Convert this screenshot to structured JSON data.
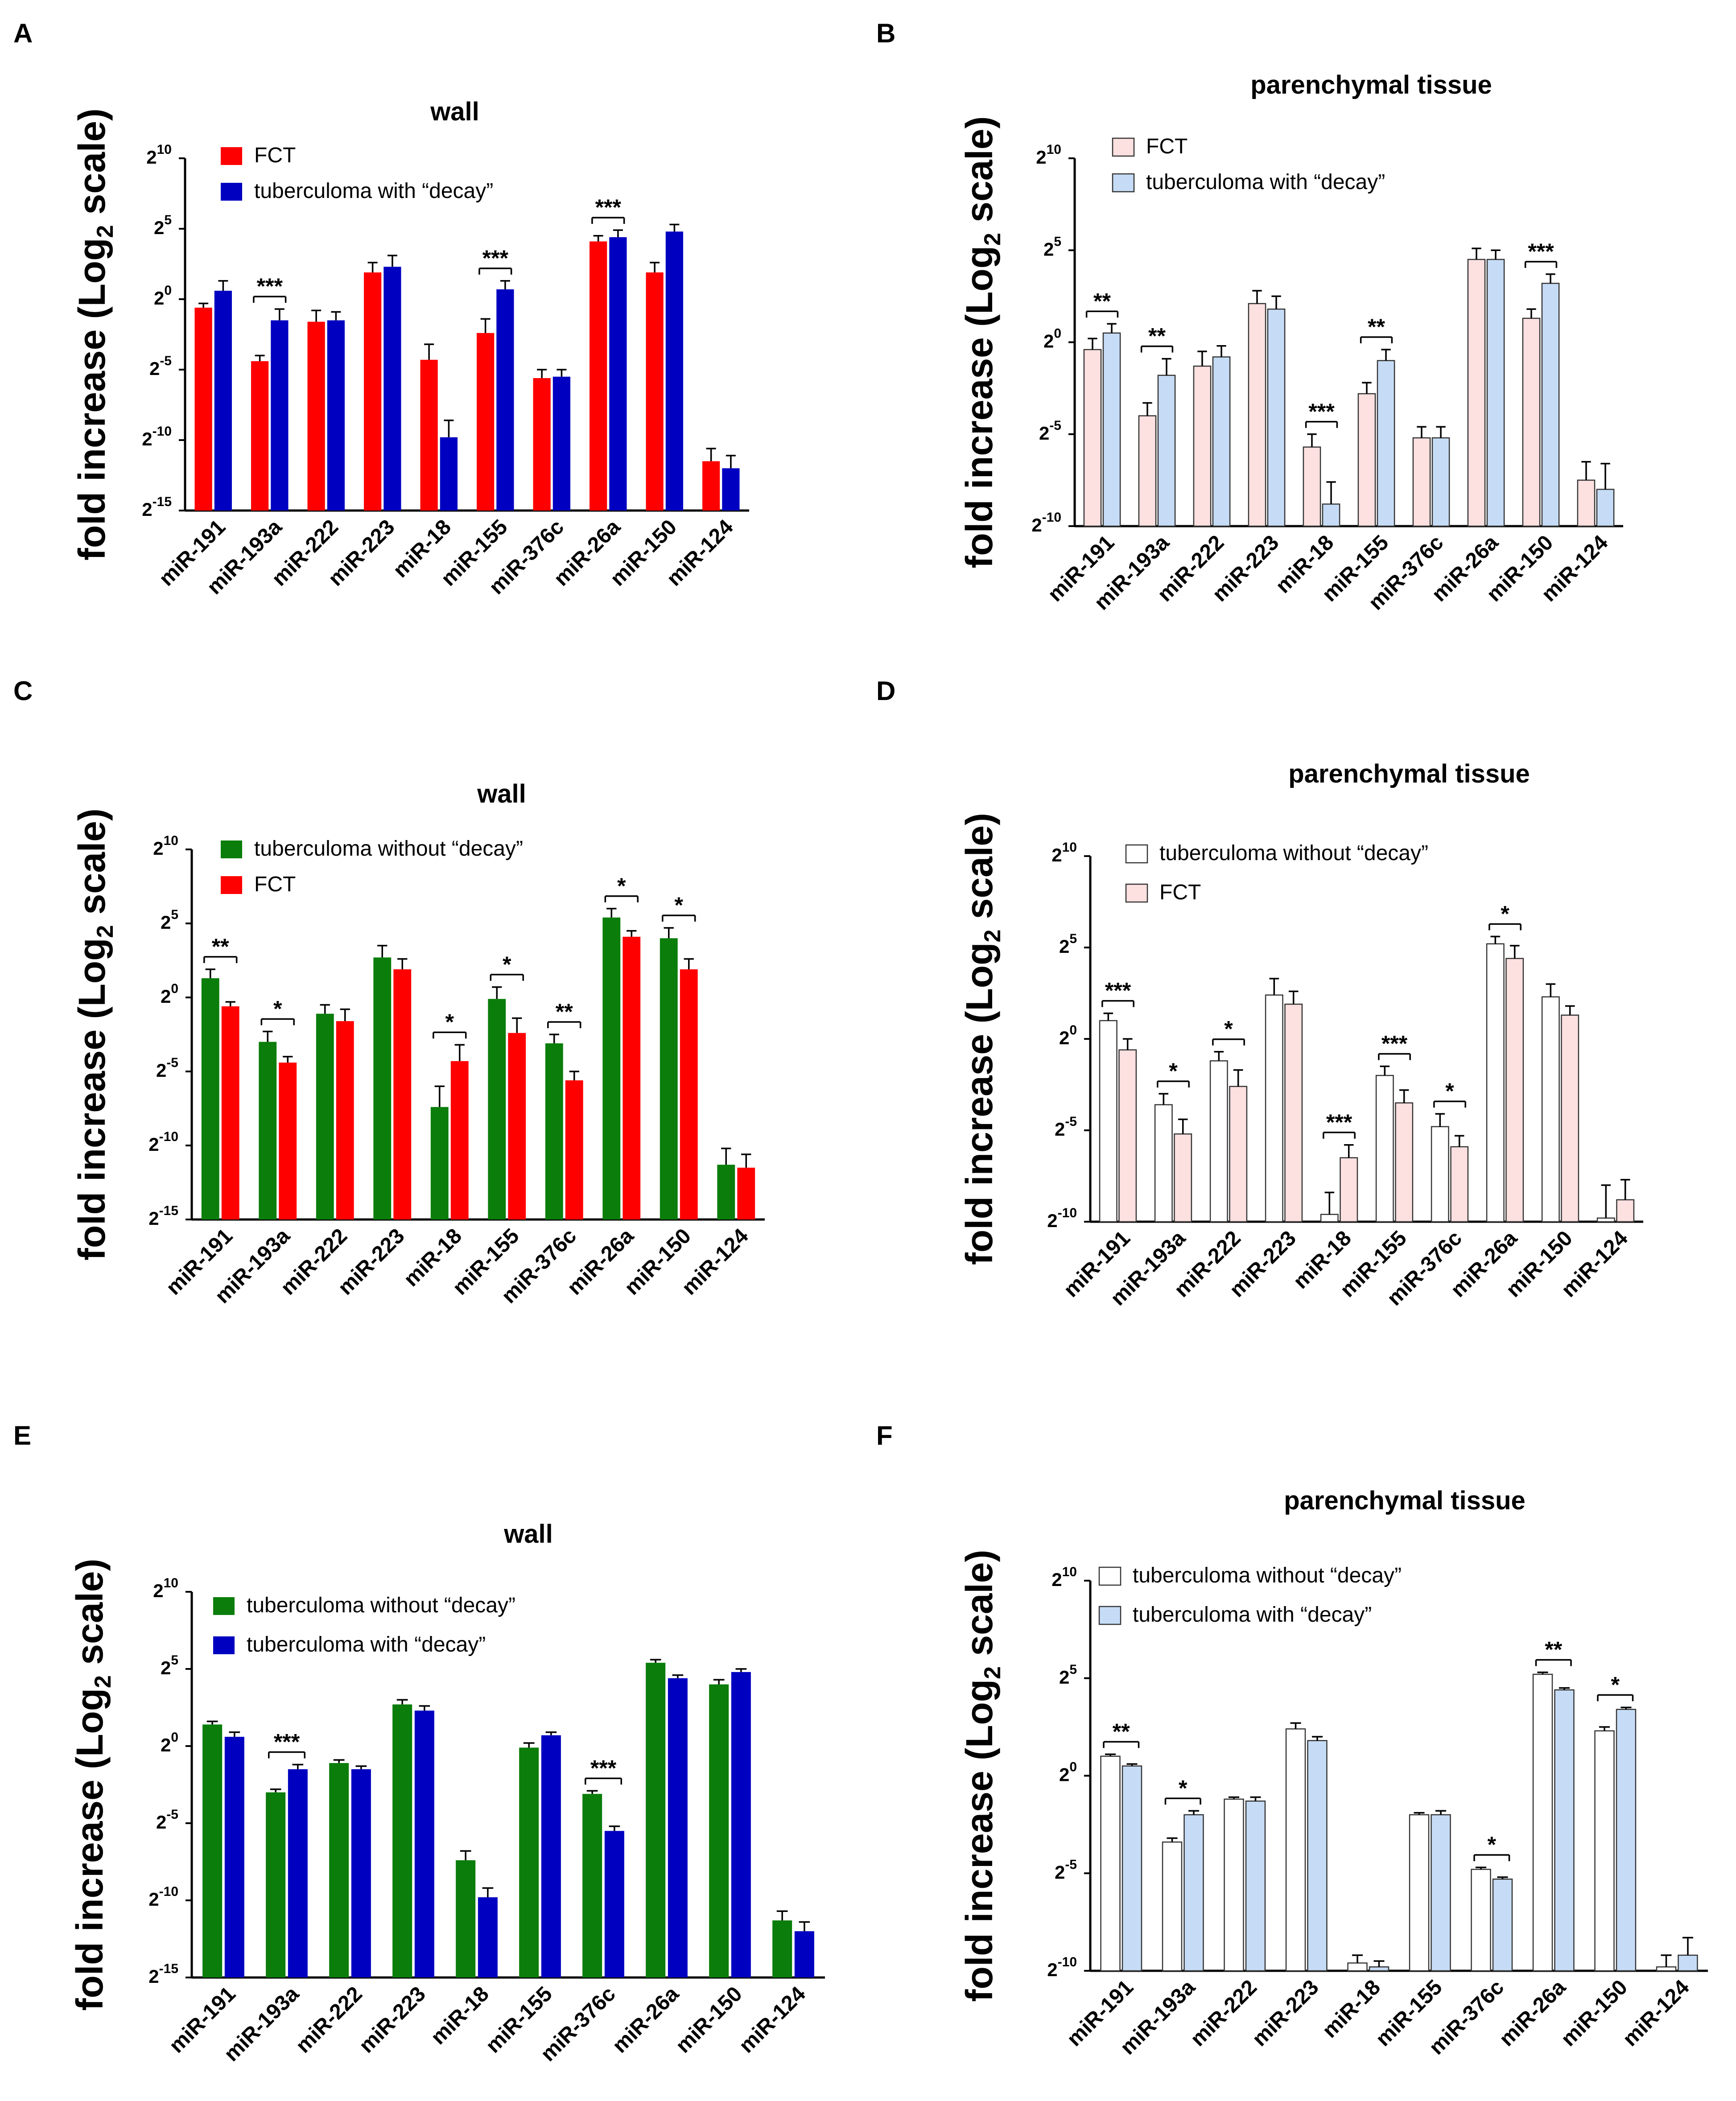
{
  "colors": {
    "red": "#ff0000",
    "blue": "#0000c0",
    "green": "#0a7d0a",
    "pink": "#fde0e0",
    "lightblue": "#c6dcf6",
    "white": "#ffffff",
    "outline": "#000000"
  },
  "chart_data": [
    {
      "panel": "A",
      "type": "bar",
      "title": "wall",
      "ylabel": "fold increase (Log2 scale)",
      "ylim": [
        -15,
        10
      ],
      "yticks": [
        -15,
        -10,
        -5,
        0,
        5,
        10
      ],
      "categories": [
        "miR-191",
        "miR-193a",
        "miR-222",
        "miR-223",
        "miR-18",
        "miR-155",
        "miR-376c",
        "miR-26a",
        "miR-150",
        "miR-124"
      ],
      "series": [
        {
          "name": "FCT",
          "color": "red",
          "values": [
            -0.6,
            -4.4,
            -1.6,
            1.9,
            -4.3,
            -2.4,
            -5.6,
            4.1,
            1.9,
            -11.5
          ],
          "errors": [
            0.3,
            0.4,
            0.8,
            0.7,
            1.1,
            1.0,
            0.6,
            0.4,
            0.7,
            0.9
          ]
        },
        {
          "name": "tuberculoma with “decay”",
          "color": "blue",
          "values": [
            0.6,
            -1.5,
            -1.5,
            2.3,
            -9.8,
            0.7,
            -5.5,
            4.4,
            4.8,
            -12.0
          ],
          "errors": [
            0.7,
            0.8,
            0.6,
            0.8,
            1.2,
            0.6,
            0.5,
            0.5,
            0.5,
            0.9
          ]
        }
      ],
      "significance": [
        {
          "index": 1,
          "label": "***"
        },
        {
          "index": 5,
          "label": "***"
        },
        {
          "index": 7,
          "label": "***"
        }
      ]
    },
    {
      "panel": "B",
      "type": "bar",
      "title": "parenchymal tissue",
      "ylabel": "fold increase (Log2 scale)",
      "ylim": [
        -10,
        10
      ],
      "yticks": [
        -10,
        -5,
        0,
        5,
        10
      ],
      "categories": [
        "miR-191",
        "miR-193a",
        "miR-222",
        "miR-223",
        "miR-18",
        "miR-155",
        "miR-376c",
        "miR-26a",
        "miR-150",
        "miR-124"
      ],
      "series": [
        {
          "name": "FCT",
          "color": "pink",
          "values": [
            -0.4,
            -4.0,
            -1.3,
            2.1,
            -5.7,
            -2.8,
            -5.2,
            4.5,
            1.3,
            -7.5
          ],
          "errors": [
            0.6,
            0.7,
            0.8,
            0.7,
            0.7,
            0.6,
            0.6,
            0.6,
            0.5,
            1.0
          ]
        },
        {
          "name": "tuberculoma with “decay”",
          "color": "lightblue",
          "values": [
            0.5,
            -1.8,
            -0.8,
            1.8,
            -8.8,
            -1.0,
            -5.2,
            4.5,
            3.2,
            -8.0
          ],
          "errors": [
            0.5,
            0.9,
            0.6,
            0.7,
            1.2,
            0.6,
            0.6,
            0.5,
            0.5,
            1.4
          ]
        }
      ],
      "significance": [
        {
          "index": 0,
          "label": "**"
        },
        {
          "index": 1,
          "label": "**"
        },
        {
          "index": 4,
          "label": "***"
        },
        {
          "index": 5,
          "label": "**"
        },
        {
          "index": 8,
          "label": "***"
        }
      ]
    },
    {
      "panel": "C",
      "type": "bar",
      "title": "wall",
      "ylabel": "fold increase (Log2 scale)",
      "ylim": [
        -15,
        10
      ],
      "yticks": [
        -15,
        -10,
        -5,
        0,
        5,
        10
      ],
      "categories": [
        "miR-191",
        "miR-193a",
        "miR-222",
        "miR-223",
        "miR-18",
        "miR-155",
        "miR-376c",
        "miR-26a",
        "miR-150",
        "miR-124"
      ],
      "series": [
        {
          "name": "tuberculoma without “decay”",
          "color": "green",
          "values": [
            1.3,
            -3.0,
            -1.1,
            2.7,
            -7.4,
            -0.1,
            -3.1,
            5.4,
            4.0,
            -11.3
          ],
          "errors": [
            0.6,
            0.7,
            0.6,
            0.8,
            1.4,
            0.8,
            0.6,
            0.6,
            0.7,
            1.1
          ]
        },
        {
          "name": "FCT",
          "color": "red",
          "values": [
            -0.6,
            -4.4,
            -1.6,
            1.9,
            -4.3,
            -2.4,
            -5.6,
            4.1,
            1.9,
            -11.5
          ],
          "errors": [
            0.3,
            0.4,
            0.8,
            0.7,
            1.1,
            1.0,
            0.6,
            0.4,
            0.7,
            0.9
          ]
        }
      ],
      "significance": [
        {
          "index": 0,
          "label": "**"
        },
        {
          "index": 1,
          "label": "*"
        },
        {
          "index": 4,
          "label": "*"
        },
        {
          "index": 5,
          "label": "*"
        },
        {
          "index": 6,
          "label": "**"
        },
        {
          "index": 7,
          "label": "*"
        },
        {
          "index": 8,
          "label": "*"
        }
      ]
    },
    {
      "panel": "D",
      "type": "bar",
      "title": "parenchymal tissue",
      "ylabel": "fold increase (Log2 scale)",
      "ylim": [
        -10,
        10
      ],
      "yticks": [
        -10,
        -5,
        0,
        5,
        10
      ],
      "categories": [
        "miR-191",
        "miR-193a",
        "miR-222",
        "miR-223",
        "miR-18",
        "miR-155",
        "miR-376c",
        "miR-26a",
        "miR-150",
        "miR-124"
      ],
      "series": [
        {
          "name": "tuberculoma without “decay”",
          "color": "white",
          "values": [
            1.0,
            -3.6,
            -1.2,
            2.4,
            -9.6,
            -2.0,
            -4.8,
            5.2,
            2.3,
            -9.8
          ],
          "errors": [
            0.4,
            0.6,
            0.5,
            0.9,
            1.2,
            0.5,
            0.7,
            0.4,
            0.7,
            1.8
          ]
        },
        {
          "name": "FCT",
          "color": "pink",
          "values": [
            -0.6,
            -5.2,
            -2.6,
            1.9,
            -6.5,
            -3.5,
            -5.9,
            4.4,
            1.3,
            -8.8
          ],
          "errors": [
            0.6,
            0.8,
            0.9,
            0.7,
            0.7,
            0.7,
            0.6,
            0.7,
            0.5,
            1.1
          ]
        }
      ],
      "significance": [
        {
          "index": 0,
          "label": "***"
        },
        {
          "index": 1,
          "label": "*"
        },
        {
          "index": 2,
          "label": "*"
        },
        {
          "index": 4,
          "label": "***"
        },
        {
          "index": 5,
          "label": "***"
        },
        {
          "index": 6,
          "label": "*"
        },
        {
          "index": 7,
          "label": "*"
        }
      ]
    },
    {
      "panel": "E",
      "type": "bar",
      "title": "wall",
      "ylabel": "fold increase (Log2 scale)",
      "ylim": [
        -15,
        10
      ],
      "yticks": [
        -15,
        -10,
        -5,
        0,
        5,
        10
      ],
      "categories": [
        "miR-191",
        "miR-193a",
        "miR-222",
        "miR-223",
        "miR-18",
        "miR-155",
        "miR-376c",
        "miR-26a",
        "miR-150",
        "miR-124"
      ],
      "series": [
        {
          "name": "tuberculoma without “decay”",
          "color": "green",
          "values": [
            1.4,
            -3.0,
            -1.1,
            2.7,
            -7.4,
            -0.1,
            -3.1,
            5.4,
            4.0,
            -11.3
          ],
          "errors": [
            0.2,
            0.2,
            0.2,
            0.3,
            0.6,
            0.3,
            0.2,
            0.2,
            0.3,
            0.6
          ]
        },
        {
          "name": "tuberculoma with “decay”",
          "color": "blue",
          "values": [
            0.6,
            -1.5,
            -1.5,
            2.3,
            -9.8,
            0.7,
            -5.5,
            4.4,
            4.8,
            -12.0
          ],
          "errors": [
            0.3,
            0.3,
            0.2,
            0.3,
            0.6,
            0.2,
            0.3,
            0.2,
            0.2,
            0.6
          ]
        }
      ],
      "significance": [
        {
          "index": 1,
          "label": "***"
        },
        {
          "index": 6,
          "label": "***"
        }
      ]
    },
    {
      "panel": "F",
      "type": "bar",
      "title": "parenchymal tissue",
      "ylabel": "fold increase (Log2 scale)",
      "ylim": [
        -10,
        10
      ],
      "yticks": [
        -10,
        -5,
        0,
        5,
        10
      ],
      "categories": [
        "miR-191",
        "miR-193a",
        "miR-222",
        "miR-223",
        "miR-18",
        "miR-155",
        "miR-376c",
        "miR-26a",
        "miR-150",
        "miR-124"
      ],
      "series": [
        {
          "name": "tuberculoma without “decay”",
          "color": "white",
          "values": [
            1.0,
            -3.4,
            -1.2,
            2.4,
            -9.6,
            -2.0,
            -4.8,
            5.2,
            2.3,
            -9.8
          ],
          "errors": [
            0.1,
            0.2,
            0.1,
            0.3,
            0.4,
            0.1,
            0.1,
            0.1,
            0.2,
            0.6
          ]
        },
        {
          "name": "tuberculoma with “decay”",
          "color": "lightblue",
          "values": [
            0.5,
            -2.0,
            -1.3,
            1.8,
            -9.8,
            -2.0,
            -5.3,
            4.4,
            3.4,
            -9.2
          ],
          "errors": [
            0.1,
            0.2,
            0.2,
            0.2,
            0.3,
            0.2,
            0.1,
            0.1,
            0.1,
            0.9
          ]
        }
      ],
      "significance": [
        {
          "index": 0,
          "label": "**"
        },
        {
          "index": 1,
          "label": "*"
        },
        {
          "index": 6,
          "label": "*"
        },
        {
          "index": 7,
          "label": "**"
        },
        {
          "index": 8,
          "label": "*"
        }
      ]
    }
  ]
}
